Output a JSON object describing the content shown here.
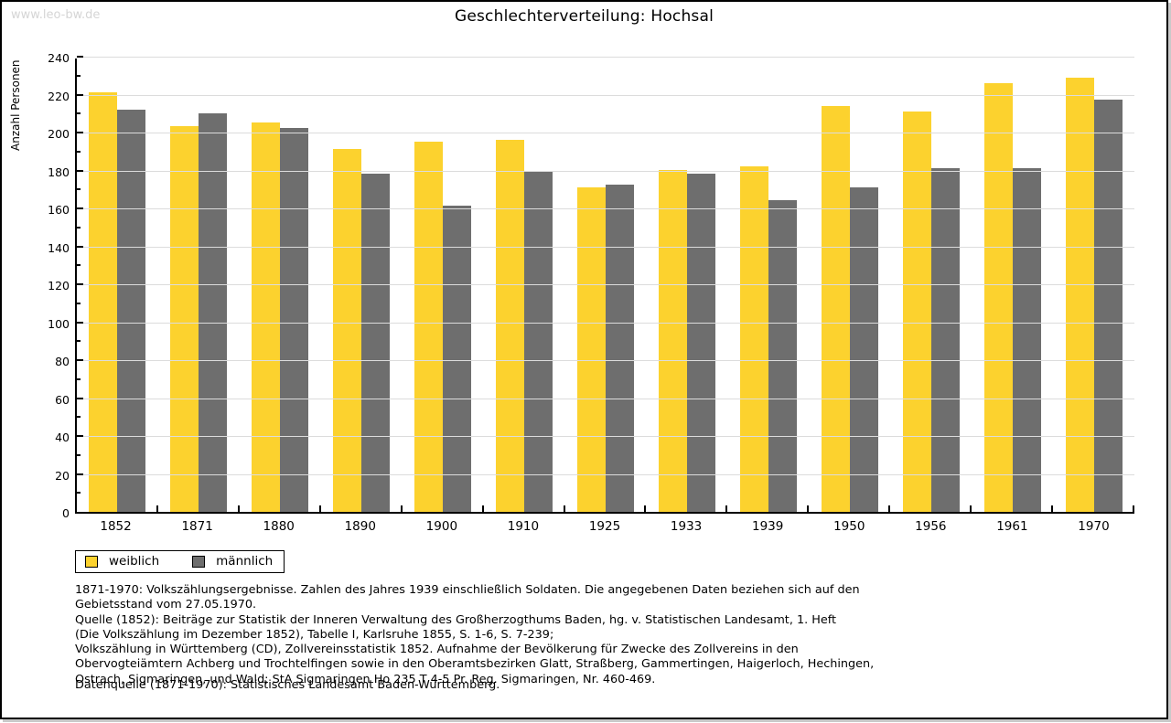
{
  "watermark": "www.leo-bw.de",
  "title": "Geschlechterverteilung: Hochsal",
  "chart_data": {
    "type": "bar",
    "title": "Geschlechterverteilung: Hochsal",
    "xlabel": "",
    "ylabel": "Anzahl Personen",
    "ylim": [
      0,
      240
    ],
    "ytick_label_step": 20,
    "ytick_minor_step": 10,
    "grid": true,
    "legend_position": "bottom-left",
    "categories": [
      "1852",
      "1871",
      "1880",
      "1890",
      "1900",
      "1910",
      "1925",
      "1933",
      "1939",
      "1950",
      "1956",
      "1961",
      "1970"
    ],
    "series": [
      {
        "name": "weiblich",
        "color": "#fcd22e",
        "values": [
          222,
          204,
          206,
          192,
          196,
          197,
          172,
          181,
          183,
          215,
          212,
          227,
          230
        ]
      },
      {
        "name": "männlich",
        "color": "#6e6e6e",
        "values": [
          213,
          211,
          203,
          179,
          162,
          180,
          173,
          179,
          165,
          172,
          182,
          182,
          218
        ]
      }
    ]
  },
  "colors": {
    "weiblich": "#fcd22e",
    "maennlich": "#6e6e6e",
    "gridline": "#dcdcdc",
    "watermark": "#d5d5d5"
  },
  "footnotes": {
    "lines": [
      "1871-1970: Volkszählungsergebnisse. Zahlen des Jahres 1939 einschließlich Soldaten. Die angegebenen Daten beziehen sich auf den",
      "Gebietsstand vom 27.05.1970.",
      "Quelle (1852): Beiträge zur Statistik der Inneren Verwaltung des Großherzogthums Baden, hg. v. Statistischen Landesamt, 1. Heft",
      "(Die Volkszählung im Dezember 1852), Tabelle I, Karlsruhe 1855, S. 1-6, S. 7-239;",
      "Volkszählung in Württemberg (CD), Zollvereinsstatistik 1852. Aufnahme der Bevölkerung für Zwecke des Zollvereins in den",
      "Obervogteiämtern Achberg und Trochtelfingen sowie in den Oberamtsbezirken Glatt, Straßberg, Gammertingen, Haigerloch, Hechingen,",
      "Ostrach, Sigmaringen, und Wald; StA Sigmaringen Ho 235 T 4-5 Pr. Reg. Sigmaringen, Nr. 460-469."
    ],
    "datasource": "Datenquelle (1871-1970): Statistisches Landesamt Baden-Württemberg."
  }
}
